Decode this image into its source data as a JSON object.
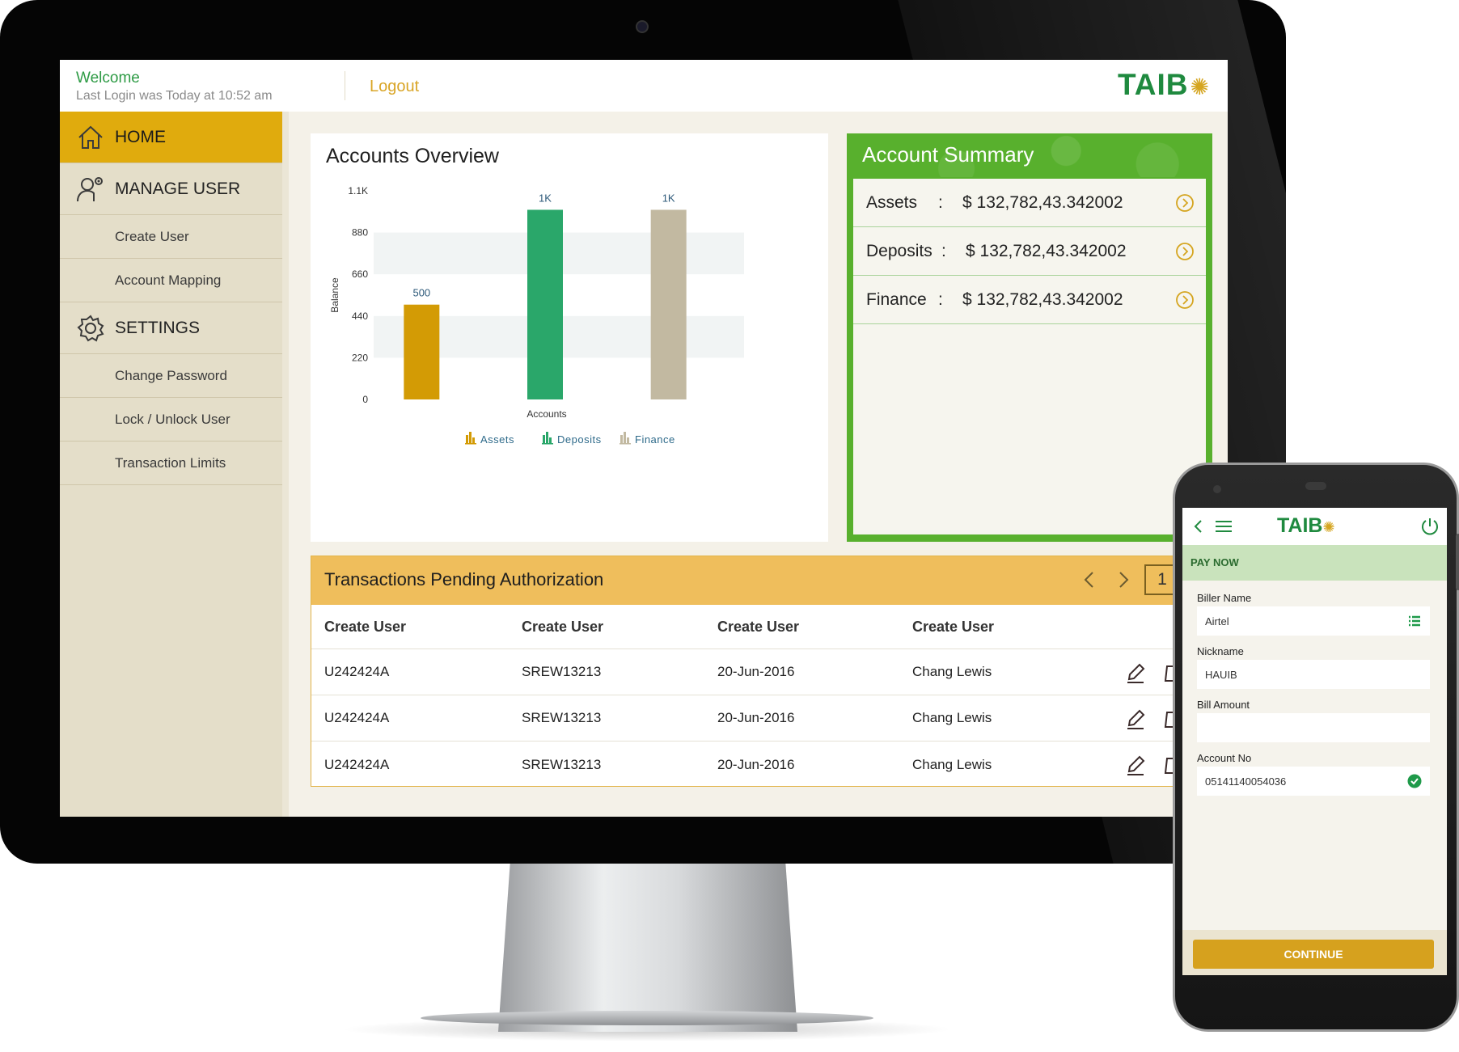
{
  "header": {
    "welcome": "Welcome",
    "last_login": "Last Login was Today at 10:52 am",
    "logout": "Logout",
    "logo_text": "TAIB"
  },
  "sidebar": {
    "home": "HOME",
    "manage_user": "MANAGE USER",
    "create_user": "Create User",
    "account_mapping": "Account Mapping",
    "settings": "SETTINGS",
    "change_password": "Change Password",
    "lock_unlock": "Lock / Unlock User",
    "transaction_limits": "Transaction Limits"
  },
  "overview": {
    "title": "Accounts Overview"
  },
  "chart_data": {
    "type": "bar",
    "categories": [
      "Assets",
      "Deposits",
      "Finance"
    ],
    "values": [
      500,
      1000,
      1000
    ],
    "data_labels": [
      "500",
      "1K",
      "1K"
    ],
    "colors": [
      "#d39b05",
      "#2aa76a",
      "#c2b9a1"
    ],
    "xlabel": "Accounts",
    "ylabel": "Balance",
    "ylim": [
      0,
      1100
    ],
    "yticks": [
      0,
      220,
      440,
      660,
      880,
      1100
    ],
    "ytick_labels": [
      "0",
      "220",
      "440",
      "660",
      "880",
      "1.1K"
    ],
    "legend": [
      "Assets",
      "Deposits",
      "Finance"
    ],
    "legend_position": "bottom"
  },
  "summary": {
    "title": "Account Summary",
    "rows": [
      {
        "label": "Assets",
        "value": "$ 132,782,43.342002"
      },
      {
        "label": "Deposits",
        "value": "$ 132,782,43.342002"
      },
      {
        "label": "Finance",
        "value": "$ 132,782,43.342002"
      }
    ]
  },
  "transactions": {
    "title": "Transactions  Pending Authorization",
    "page": "1",
    "columns": [
      "Create User",
      "Create User",
      "Create User",
      "Create User"
    ],
    "rows": [
      [
        "U242424A",
        "SREW13213",
        "20-Jun-2016",
        "Chang Lewis"
      ],
      [
        "U242424A",
        "SREW13213",
        "20-Jun-2016",
        "Chang Lewis"
      ],
      [
        "U242424A",
        "SREW13213",
        "20-Jun-2016",
        "Chang Lewis"
      ]
    ]
  },
  "phone": {
    "logo_text": "TAIB",
    "pay_now": "PAY NOW",
    "biller_name_label": "Biller Name",
    "biller_name_value": "Airtel",
    "nickname_label": "Nickname",
    "nickname_value": "HAUIB",
    "bill_amount_label": "Bill Amount",
    "bill_amount_value": "",
    "account_no_label": "Account No",
    "account_no_value": "05141140054036",
    "continue": "CONTINUE"
  },
  "colors": {
    "brand_green": "#1f8a3f",
    "brand_gold": "#e0ab0d",
    "summary_green": "#58b02d",
    "tx_header": "#efbe5c"
  }
}
